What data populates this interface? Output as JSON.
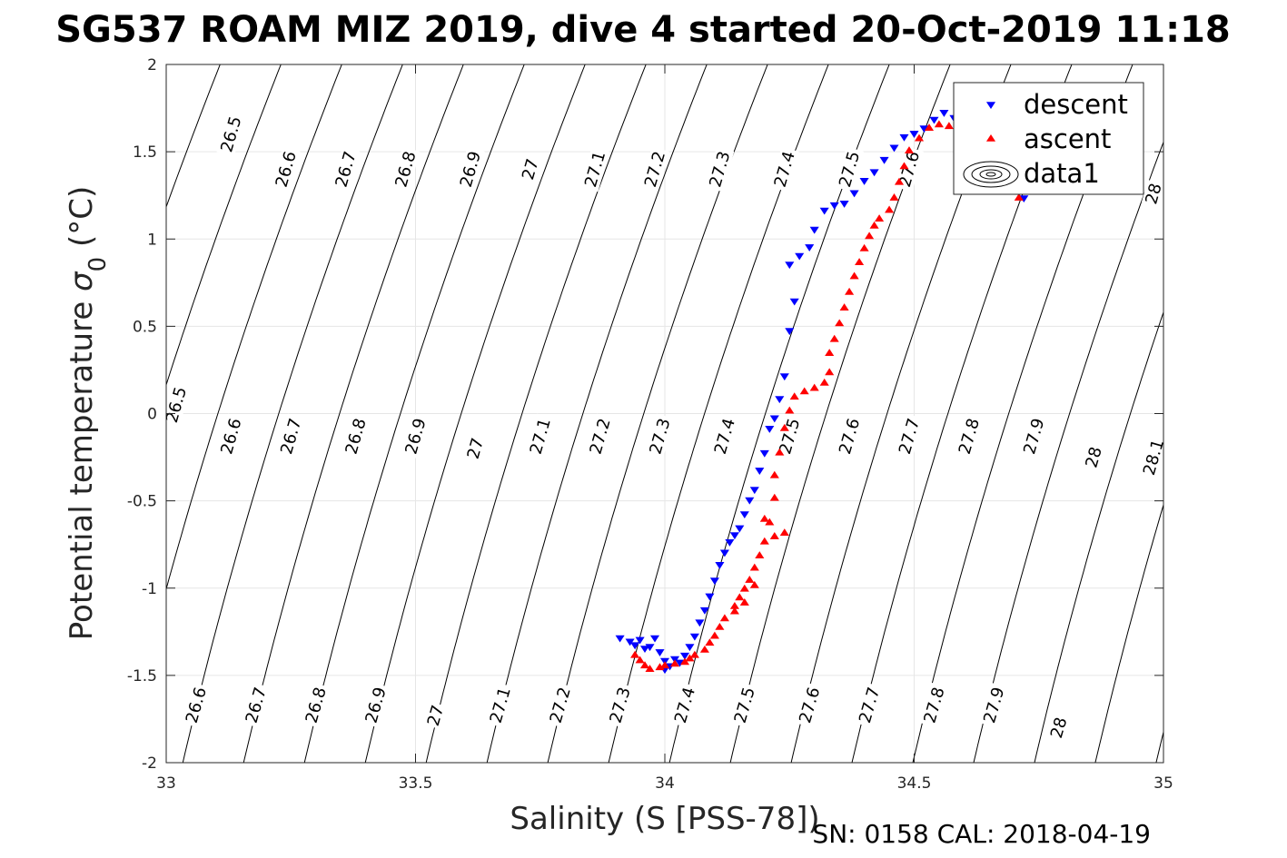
{
  "title": "SG537 ROAM MIZ 2019, dive 4 started 20-Oct-2019 11:18",
  "footer": "SN: 0158  CAL: 2018-04-19",
  "colors": {
    "descent": "#0000ff",
    "ascent": "#ff0000",
    "contours": "#000000",
    "grid": "#e6e6e6",
    "axes": "#262626"
  },
  "chart_data": {
    "type": "scatter",
    "xlabel": "Salinity (S [PSS-78])",
    "ylabel_main": "Potential temperature ",
    "ylabel_sym": "σ",
    "ylabel_sub": "0",
    "ylabel_unit": " (°C)",
    "xlim": [
      33,
      35
    ],
    "ylim": [
      -2,
      2
    ],
    "x_ticks": [
      33,
      33.5,
      34,
      34.5,
      35
    ],
    "x_tick_labels": [
      "33",
      "33.5",
      "34",
      "34.5",
      "35"
    ],
    "y_ticks": [
      -2,
      -1.5,
      -1,
      -0.5,
      0,
      0.5,
      1,
      1.5,
      2
    ],
    "y_tick_labels": [
      "-2",
      "-1.5",
      "-1",
      "-0.5",
      "0",
      "0.5",
      "1",
      "1.5",
      "2"
    ],
    "grid": true,
    "legend": {
      "position": "top-right",
      "entries": [
        "descent",
        "ascent",
        "data1"
      ]
    },
    "contour_levels": [
      26.5,
      26.6,
      26.7,
      26.8,
      26.9,
      27,
      27.1,
      27.2,
      27.3,
      27.4,
      27.5,
      27.6,
      27.7,
      27.8,
      27.9,
      28,
      28.1
    ],
    "contour_labels": [
      {
        "text": "26.5",
        "x": 33.13,
        "y": 1.6
      },
      {
        "text": "26.6",
        "x": 33.24,
        "y": 1.4
      },
      {
        "text": "26.7",
        "x": 33.36,
        "y": 1.4
      },
      {
        "text": "26.8",
        "x": 33.48,
        "y": 1.4
      },
      {
        "text": "26.9",
        "x": 33.61,
        "y": 1.4
      },
      {
        "text": "27",
        "x": 33.73,
        "y": 1.4
      },
      {
        "text": "27.1",
        "x": 33.86,
        "y": 1.4
      },
      {
        "text": "27.2",
        "x": 33.98,
        "y": 1.4
      },
      {
        "text": "27.3",
        "x": 34.11,
        "y": 1.4
      },
      {
        "text": "27.4",
        "x": 34.24,
        "y": 1.4
      },
      {
        "text": "27.5",
        "x": 34.37,
        "y": 1.4
      },
      {
        "text": "27.6",
        "x": 34.49,
        "y": 1.4
      },
      {
        "text": "28",
        "x": 34.98,
        "y": 1.26
      },
      {
        "text": "26.5",
        "x": 33.02,
        "y": 0.05
      },
      {
        "text": "26.6",
        "x": 33.13,
        "y": -0.13
      },
      {
        "text": "26.7",
        "x": 33.25,
        "y": -0.13
      },
      {
        "text": "26.8",
        "x": 33.38,
        "y": -0.13
      },
      {
        "text": "26.9",
        "x": 33.5,
        "y": -0.13
      },
      {
        "text": "27",
        "x": 33.62,
        "y": -0.2
      },
      {
        "text": "27.1",
        "x": 33.75,
        "y": -0.13
      },
      {
        "text": "27.2",
        "x": 33.87,
        "y": -0.13
      },
      {
        "text": "27.3",
        "x": 33.99,
        "y": -0.13
      },
      {
        "text": "27.4",
        "x": 34.12,
        "y": -0.13
      },
      {
        "text": "27.5",
        "x": 34.25,
        "y": -0.13
      },
      {
        "text": "27.6",
        "x": 34.37,
        "y": -0.13
      },
      {
        "text": "27.7",
        "x": 34.49,
        "y": -0.13
      },
      {
        "text": "27.8",
        "x": 34.61,
        "y": -0.13
      },
      {
        "text": "27.9",
        "x": 34.74,
        "y": -0.13
      },
      {
        "text": "28",
        "x": 34.86,
        "y": -0.25
      },
      {
        "text": "28.1",
        "x": 34.98,
        "y": -0.25
      },
      {
        "text": "26.6",
        "x": 33.06,
        "y": -1.67
      },
      {
        "text": "26.7",
        "x": 33.18,
        "y": -1.67
      },
      {
        "text": "26.8",
        "x": 33.3,
        "y": -1.67
      },
      {
        "text": "26.9",
        "x": 33.42,
        "y": -1.67
      },
      {
        "text": "27",
        "x": 33.54,
        "y": -1.73
      },
      {
        "text": "27.1",
        "x": 33.67,
        "y": -1.67
      },
      {
        "text": "27.2",
        "x": 33.79,
        "y": -1.67
      },
      {
        "text": "27.3",
        "x": 33.91,
        "y": -1.67
      },
      {
        "text": "27.4",
        "x": 34.04,
        "y": -1.67
      },
      {
        "text": "27.5",
        "x": 34.16,
        "y": -1.67
      },
      {
        "text": "27.6",
        "x": 34.29,
        "y": -1.67
      },
      {
        "text": "27.7",
        "x": 34.41,
        "y": -1.67
      },
      {
        "text": "27.8",
        "x": 34.54,
        "y": -1.67
      },
      {
        "text": "27.9",
        "x": 34.66,
        "y": -1.67
      },
      {
        "text": "28",
        "x": 34.79,
        "y": -1.8
      }
    ],
    "series": [
      {
        "name": "descent",
        "marker": "triangle-down",
        "points": [
          [
            33.91,
            -1.29
          ],
          [
            33.93,
            -1.31
          ],
          [
            33.94,
            -1.33
          ],
          [
            33.95,
            -1.3
          ],
          [
            33.96,
            -1.35
          ],
          [
            33.97,
            -1.34
          ],
          [
            33.98,
            -1.29
          ],
          [
            33.99,
            -1.37
          ],
          [
            34.0,
            -1.42
          ],
          [
            34.0,
            -1.47
          ],
          [
            34.01,
            -1.45
          ],
          [
            34.02,
            -1.41
          ],
          [
            34.03,
            -1.43
          ],
          [
            34.04,
            -1.39
          ],
          [
            34.05,
            -1.34
          ],
          [
            34.06,
            -1.28
          ],
          [
            34.07,
            -1.2
          ],
          [
            34.08,
            -1.13
          ],
          [
            34.09,
            -1.05
          ],
          [
            34.1,
            -0.96
          ],
          [
            34.11,
            -0.87
          ],
          [
            34.12,
            -0.8
          ],
          [
            34.13,
            -0.74
          ],
          [
            34.14,
            -0.7
          ],
          [
            34.15,
            -0.66
          ],
          [
            34.16,
            -0.58
          ],
          [
            34.17,
            -0.5
          ],
          [
            34.18,
            -0.44
          ],
          [
            34.19,
            -0.33
          ],
          [
            34.2,
            -0.23
          ],
          [
            34.21,
            -0.09
          ],
          [
            34.22,
            -0.03
          ],
          [
            34.23,
            0.08
          ],
          [
            34.24,
            0.21
          ],
          [
            34.25,
            0.47
          ],
          [
            34.26,
            0.64
          ],
          [
            34.25,
            0.85
          ],
          [
            34.27,
            0.9
          ],
          [
            34.29,
            0.95
          ],
          [
            34.3,
            1.05
          ],
          [
            34.32,
            1.16
          ],
          [
            34.34,
            1.19
          ],
          [
            34.36,
            1.2
          ],
          [
            34.38,
            1.26
          ],
          [
            34.4,
            1.33
          ],
          [
            34.42,
            1.38
          ],
          [
            34.44,
            1.45
          ],
          [
            34.46,
            1.52
          ],
          [
            34.48,
            1.58
          ],
          [
            34.5,
            1.6
          ],
          [
            34.52,
            1.63
          ],
          [
            34.54,
            1.68
          ],
          [
            34.56,
            1.72
          ],
          [
            34.58,
            1.69
          ],
          [
            34.6,
            1.61
          ],
          [
            34.62,
            1.5
          ],
          [
            34.65,
            1.42
          ],
          [
            34.68,
            1.35
          ],
          [
            34.7,
            1.28
          ],
          [
            34.72,
            1.23
          ]
        ]
      },
      {
        "name": "ascent",
        "marker": "triangle-up",
        "points": [
          [
            33.94,
            -1.38
          ],
          [
            33.95,
            -1.41
          ],
          [
            33.96,
            -1.44
          ],
          [
            33.97,
            -1.46
          ],
          [
            33.99,
            -1.45
          ],
          [
            34.0,
            -1.44
          ],
          [
            34.02,
            -1.43
          ],
          [
            34.04,
            -1.42
          ],
          [
            34.05,
            -1.4
          ],
          [
            34.06,
            -1.38
          ],
          [
            34.08,
            -1.35
          ],
          [
            34.09,
            -1.31
          ],
          [
            34.1,
            -1.27
          ],
          [
            34.11,
            -1.22
          ],
          [
            34.12,
            -1.17
          ],
          [
            34.14,
            -1.1
          ],
          [
            34.15,
            -1.05
          ],
          [
            34.16,
            -1.0
          ],
          [
            34.17,
            -0.95
          ],
          [
            34.18,
            -0.88
          ],
          [
            34.19,
            -0.81
          ],
          [
            34.2,
            -0.73
          ],
          [
            34.21,
            -0.62
          ],
          [
            34.22,
            -0.48
          ],
          [
            34.22,
            -0.35
          ],
          [
            34.23,
            -0.22
          ],
          [
            34.24,
            -0.08
          ],
          [
            34.25,
            0.02
          ],
          [
            34.26,
            0.1
          ],
          [
            34.28,
            0.13
          ],
          [
            34.3,
            0.15
          ],
          [
            34.32,
            0.18
          ],
          [
            34.33,
            0.24
          ],
          [
            34.33,
            0.35
          ],
          [
            34.34,
            0.43
          ],
          [
            34.35,
            0.52
          ],
          [
            34.36,
            0.61
          ],
          [
            34.37,
            0.7
          ],
          [
            34.38,
            0.79
          ],
          [
            34.39,
            0.87
          ],
          [
            34.4,
            0.95
          ],
          [
            34.41,
            1.02
          ],
          [
            34.42,
            1.08
          ],
          [
            34.43,
            1.12
          ],
          [
            34.45,
            1.17
          ],
          [
            34.46,
            1.24
          ],
          [
            34.47,
            1.33
          ],
          [
            34.48,
            1.42
          ],
          [
            34.49,
            1.51
          ],
          [
            34.51,
            1.58
          ],
          [
            34.53,
            1.64
          ],
          [
            34.55,
            1.66
          ],
          [
            34.57,
            1.65
          ],
          [
            34.6,
            1.6
          ],
          [
            34.63,
            1.52
          ],
          [
            34.66,
            1.4
          ],
          [
            34.69,
            1.3
          ],
          [
            34.71,
            1.24
          ],
          [
            34.2,
            -0.6
          ],
          [
            34.22,
            -0.7
          ],
          [
            34.24,
            -0.68
          ],
          [
            34.14,
            -1.13
          ],
          [
            34.16,
            -1.08
          ],
          [
            34.18,
            -0.98
          ]
        ]
      }
    ]
  }
}
